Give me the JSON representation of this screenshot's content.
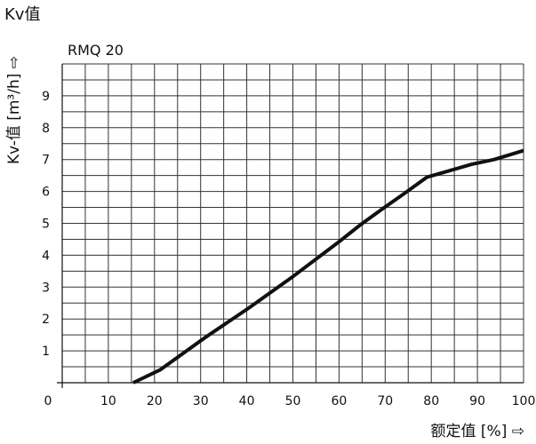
{
  "page": {
    "heading": "Kv值"
  },
  "chart_data": {
    "type": "line",
    "series_label": "RMQ 20",
    "xlabel": "额定值 [%] ⇨",
    "ylabel": "Kv-值 [m³/h] ⇨",
    "xlim": [
      0,
      100
    ],
    "ylim": [
      0,
      10
    ],
    "x_ticks": [
      0,
      10,
      20,
      30,
      40,
      50,
      60,
      70,
      80,
      90,
      100
    ],
    "y_ticks": [
      1,
      2,
      3,
      4,
      5,
      6,
      7,
      8,
      9
    ],
    "grid": true,
    "line_color": "#111111",
    "series": [
      {
        "x": [
          15.4,
          21.2,
          30.8,
          40.5,
          50.2,
          59.8,
          64.6,
          69.4,
          74.3,
          79.1,
          83.9,
          88.7,
          93.6,
          100
        ],
        "y": [
          0.0,
          0.4,
          1.4,
          2.35,
          3.35,
          4.4,
          4.95,
          5.45,
          5.95,
          6.45,
          6.65,
          6.85,
          7.0,
          7.28
        ]
      }
    ]
  }
}
